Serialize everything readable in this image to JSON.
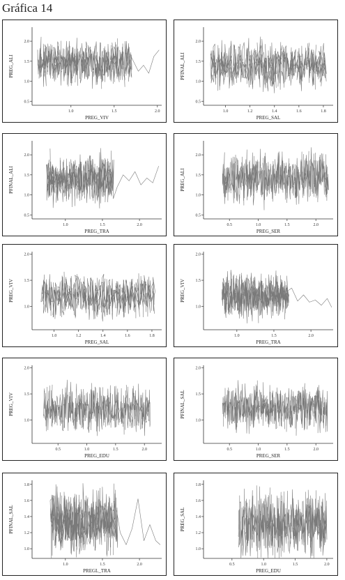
{
  "page_title": "Gráfica 14",
  "chart_data": [
    {
      "type": "line",
      "xlabel": "PREG_VIV",
      "ylabel": "PREG_ALI",
      "xlim": [
        0.55,
        2.05
      ],
      "ylim": [
        0.4,
        2.35
      ],
      "xticks": [
        1.0,
        1.5,
        2.0
      ],
      "yticks": [
        0.5,
        1.0,
        1.5,
        2.0
      ],
      "xtick_labels": [
        "1.0",
        "1.5",
        "2.0"
      ],
      "ytick_labels": [
        "0.5",
        "1.0",
        "1.5",
        "2.0"
      ],
      "grid": false,
      "dense_x": [
        0.62,
        1.7
      ],
      "center": 1.45,
      "spread": 0.42,
      "tail": [
        [
          1.7,
          1.6
        ],
        [
          1.78,
          1.25
        ],
        [
          1.84,
          1.4
        ],
        [
          1.9,
          1.2
        ],
        [
          1.96,
          1.62
        ],
        [
          2.02,
          1.78
        ]
      ]
    },
    {
      "type": "line",
      "xlabel": "PREG_SAL",
      "ylabel": "PFINAL_ALI",
      "xlim": [
        0.82,
        1.88
      ],
      "ylim": [
        0.4,
        2.35
      ],
      "xticks": [
        1.0,
        1.2,
        1.4,
        1.6,
        1.8
      ],
      "yticks": [
        0.5,
        1.0,
        1.5,
        2.0
      ],
      "xtick_labels": [
        "1.0",
        "1.2",
        "1.4",
        "1.6",
        "1.8"
      ],
      "ytick_labels": [
        "0.5",
        "1.0",
        "1.5",
        "2.0"
      ],
      "grid": false,
      "dense_x": [
        0.88,
        1.82
      ],
      "center": 1.4,
      "spread": 0.45,
      "tail": []
    },
    {
      "type": "line",
      "xlabel": "PREG_TRA",
      "ylabel": "PFINAL_ALI",
      "xlim": [
        0.55,
        2.3
      ],
      "ylim": [
        0.4,
        2.35
      ],
      "xticks": [
        1.0,
        1.5,
        2.0
      ],
      "yticks": [
        0.5,
        1.0,
        1.5,
        2.0
      ],
      "xtick_labels": [
        "1.0",
        "1.5",
        "2.0"
      ],
      "ytick_labels": [
        "0.5",
        "1.0",
        "1.5",
        "2.0"
      ],
      "grid": false,
      "dense_x": [
        0.75,
        1.65
      ],
      "center": 1.38,
      "spread": 0.45,
      "tail": [
        [
          1.7,
          1.2
        ],
        [
          1.78,
          1.5
        ],
        [
          1.86,
          1.35
        ],
        [
          1.94,
          1.58
        ],
        [
          2.02,
          1.25
        ],
        [
          2.1,
          1.42
        ],
        [
          2.18,
          1.3
        ],
        [
          2.26,
          1.72
        ]
      ]
    },
    {
      "type": "line",
      "xlabel": "PREG_SER",
      "ylabel": "PREG_ALI",
      "xlim": [
        0.05,
        2.3
      ],
      "ylim": [
        0.4,
        2.35
      ],
      "xticks": [
        0.5,
        1.0,
        1.5,
        2.0
      ],
      "yticks": [
        0.5,
        1.0,
        1.5,
        2.0
      ],
      "xtick_labels": [
        "0.5",
        "1.0",
        "1.5",
        "2.0"
      ],
      "ytick_labels": [
        "0.5",
        "1.0",
        "1.5",
        "2.0"
      ],
      "grid": false,
      "dense_x": [
        0.38,
        2.22
      ],
      "center": 1.42,
      "spread": 0.45,
      "tail": []
    },
    {
      "type": "line",
      "xlabel": "PREG_SAL",
      "ylabel": "PREG_VIV",
      "xlim": [
        0.82,
        1.88
      ],
      "ylim": [
        0.55,
        2.05
      ],
      "xticks": [
        1.0,
        1.2,
        1.4,
        1.6,
        1.8
      ],
      "yticks": [
        1.0,
        1.5,
        2.0
      ],
      "xtick_labels": [
        "1.0",
        "1.2",
        "1.4",
        "1.6",
        "1.8"
      ],
      "ytick_labels": [
        "1.0",
        "1.5",
        "2.0"
      ],
      "grid": false,
      "dense_x": [
        0.9,
        1.82
      ],
      "center": 1.2,
      "spread": 0.3,
      "tail": []
    },
    {
      "type": "line",
      "xlabel": "PREG_TRA",
      "ylabel": "PREG_VIV",
      "xlim": [
        0.55,
        2.3
      ],
      "ylim": [
        0.55,
        2.05
      ],
      "xticks": [
        1.0,
        1.5,
        2.0
      ],
      "yticks": [
        1.0,
        1.5,
        2.0
      ],
      "xtick_labels": [
        "1.0",
        "1.5",
        "2.0"
      ],
      "ytick_labels": [
        "1.0",
        "1.5",
        "2.0"
      ],
      "grid": false,
      "dense_x": [
        0.8,
        1.7
      ],
      "center": 1.2,
      "spread": 0.3,
      "tail": [
        [
          1.74,
          1.35
        ],
        [
          1.82,
          1.1
        ],
        [
          1.9,
          1.22
        ],
        [
          1.98,
          1.08
        ],
        [
          2.06,
          1.12
        ],
        [
          2.14,
          1.02
        ],
        [
          2.22,
          1.15
        ],
        [
          2.28,
          0.98
        ]
      ]
    },
    {
      "type": "line",
      "xlabel": "PREG_EDU",
      "ylabel": "PREG_VIV",
      "xlim": [
        0.05,
        2.3
      ],
      "ylim": [
        0.55,
        2.05
      ],
      "xticks": [
        0.5,
        1.0,
        1.5,
        2.0
      ],
      "yticks": [
        1.0,
        1.5,
        2.0
      ],
      "xtick_labels": [
        "0.5",
        "1.0",
        "1.5",
        "2.0"
      ],
      "ytick_labels": [
        "1.0",
        "1.5",
        "2.0"
      ],
      "grid": false,
      "dense_x": [
        0.25,
        2.1
      ],
      "center": 1.2,
      "spread": 0.32,
      "tail": []
    },
    {
      "type": "line",
      "xlabel": "PREG_SER",
      "ylabel": "PFINAL_SAL",
      "xlim": [
        0.05,
        2.3
      ],
      "ylim": [
        0.55,
        2.05
      ],
      "xticks": [
        0.5,
        1.0,
        1.5,
        2.0
      ],
      "yticks": [
        1.0,
        1.5,
        2.0
      ],
      "xtick_labels": [
        "0.5",
        "1.0",
        "1.5",
        "2.0"
      ],
      "ytick_labels": [
        "1.0",
        "1.5",
        "2.0"
      ],
      "grid": false,
      "dense_x": [
        0.38,
        2.2
      ],
      "center": 1.22,
      "spread": 0.32,
      "tail": []
    },
    {
      "type": "line",
      "xlabel": "PREGL_TRA",
      "ylabel": "PFINAL_SAL",
      "xlim": [
        0.55,
        2.3
      ],
      "ylim": [
        0.88,
        1.85
      ],
      "xticks": [
        1.0,
        1.5,
        2.0
      ],
      "yticks": [
        1.0,
        1.2,
        1.4,
        1.6,
        1.8
      ],
      "xtick_labels": [
        "1.0",
        "1.5",
        "2.0"
      ],
      "ytick_labels": [
        "1.0",
        "1.2",
        "1.4",
        "1.6",
        "1.8"
      ],
      "grid": false,
      "dense_x": [
        0.8,
        1.7
      ],
      "center": 1.32,
      "spread": 0.28,
      "tail": [
        [
          1.74,
          1.2
        ],
        [
          1.82,
          1.05
        ],
        [
          1.9,
          1.25
        ],
        [
          1.98,
          1.62
        ],
        [
          2.06,
          1.1
        ],
        [
          2.14,
          1.3
        ],
        [
          2.22,
          1.1
        ],
        [
          2.28,
          1.05
        ]
      ]
    },
    {
      "type": "line",
      "xlabel": "PREG_EDU",
      "ylabel": "PREG_SAL",
      "xlim": [
        0.05,
        2.1
      ],
      "ylim": [
        0.88,
        1.85
      ],
      "xticks": [
        0.5,
        1.0,
        1.5,
        2.0
      ],
      "yticks": [
        1.0,
        1.2,
        1.4,
        1.6,
        1.8
      ],
      "xtick_labels": [
        "0.5",
        "1.0",
        "1.5",
        "2.0"
      ],
      "ytick_labels": [
        "1.0",
        "1.2",
        "1.4",
        "1.6",
        "1.8"
      ],
      "grid": false,
      "dense_x": [
        0.6,
        2.0
      ],
      "center": 1.3,
      "spread": 0.3,
      "tail": []
    }
  ]
}
